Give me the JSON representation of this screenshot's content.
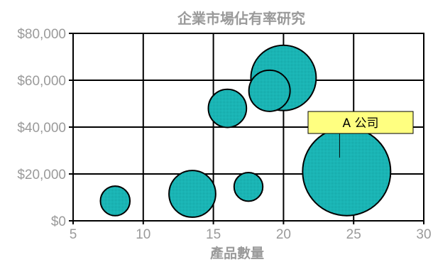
{
  "chart_data": {
    "type": "scatter",
    "variant": "bubble",
    "title": "企業市場佔有率研究",
    "xlabel": "產品數量",
    "ylabel": "",
    "xlim": [
      5,
      30
    ],
    "ylim": [
      0,
      80000
    ],
    "x_ticks": [
      5,
      10,
      15,
      20,
      25,
      30
    ],
    "y_ticks": [
      0,
      20000,
      40000,
      60000,
      80000
    ],
    "x_tick_labels": [
      "5",
      "10",
      "15",
      "20",
      "25",
      "30"
    ],
    "y_tick_labels": [
      "$0",
      "$20,000",
      "$40,000",
      "$60,000",
      "$80,000"
    ],
    "grid": true,
    "bubble_color": "#20c0c0",
    "series": [
      {
        "points": [
          {
            "x": 8,
            "y": 8500,
            "size": 1.8
          },
          {
            "x": 13.5,
            "y": 11500,
            "size": 4.5
          },
          {
            "x": 17.5,
            "y": 14500,
            "size": 1.7
          },
          {
            "x": 16,
            "y": 48000,
            "size": 3.0
          },
          {
            "x": 19,
            "y": 55500,
            "size": 3.5
          },
          {
            "x": 20,
            "y": 61000,
            "size": 8.8
          },
          {
            "x": 24.5,
            "y": 21000,
            "size": 16.0
          }
        ]
      }
    ],
    "annotations": [
      {
        "text": "A 公司",
        "target_x": 24,
        "target_y": 27000,
        "box_color": "#ffff80"
      }
    ]
  }
}
